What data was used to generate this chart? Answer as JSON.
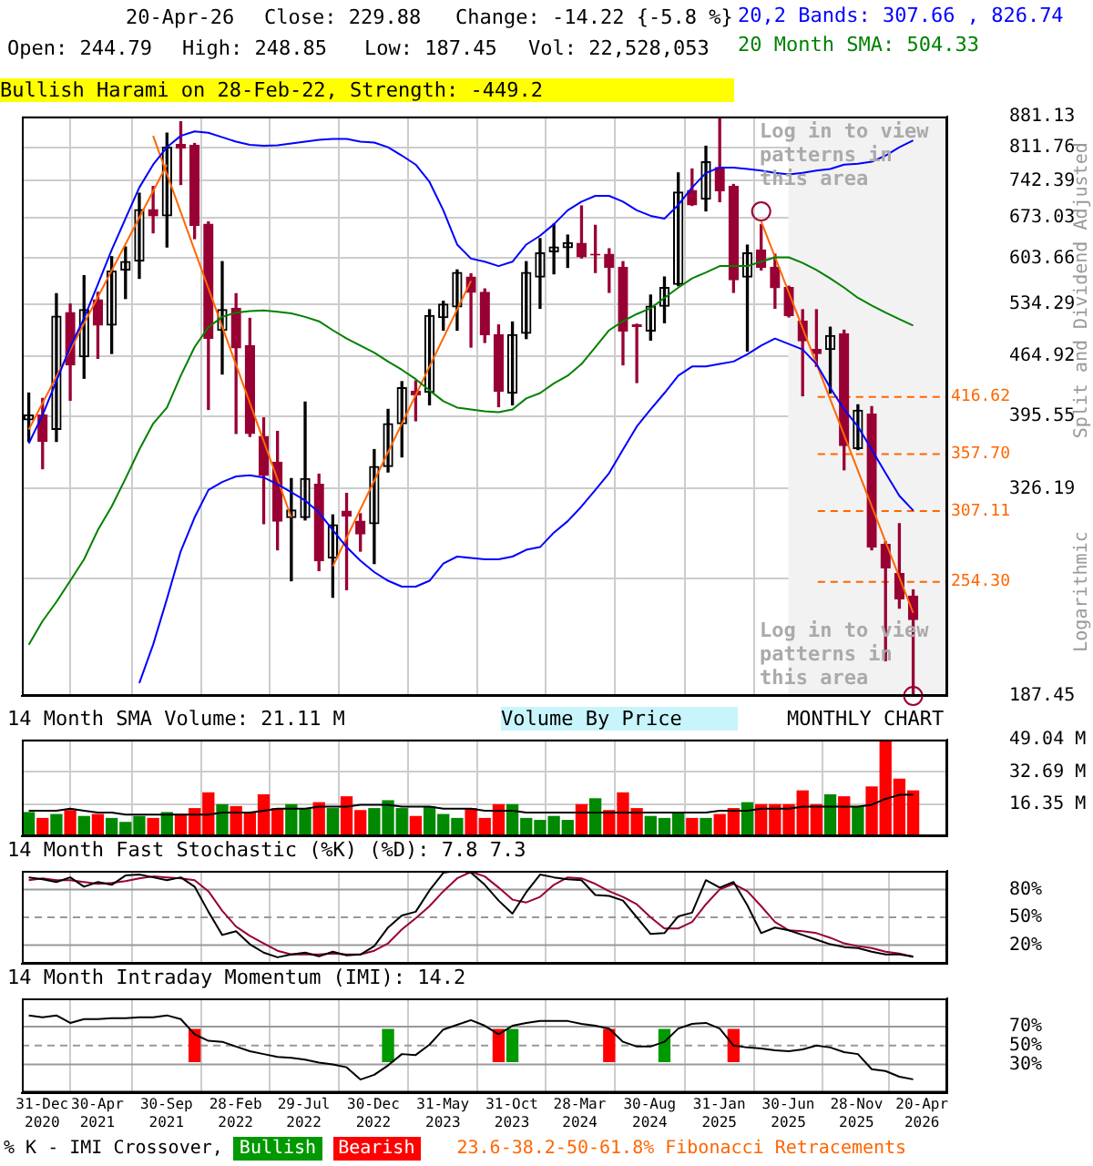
{
  "chart_data": [
    {
      "type": "candlestick",
      "title": "20-Apr-26",
      "ylabel": "Split and Dividend Adjusted",
      "x": [
        "2020-12",
        "2021-01",
        "2021-02",
        "2021-03",
        "2021-04",
        "2021-05",
        "2021-06",
        "2021-07",
        "2021-08",
        "2021-09",
        "2021-10",
        "2021-11",
        "2021-12",
        "2022-01",
        "2022-02",
        "2022-03",
        "2022-04",
        "2022-05",
        "2022-06",
        "2022-07",
        "2022-08",
        "2022-09",
        "2022-10",
        "2022-11",
        "2022-12",
        "2023-01",
        "2023-02",
        "2023-03",
        "2023-04",
        "2023-05",
        "2023-06",
        "2023-07",
        "2023-08",
        "2023-09",
        "2023-10",
        "2023-11",
        "2023-12",
        "2024-01",
        "2024-02",
        "2024-03",
        "2024-04",
        "2024-05",
        "2024-06",
        "2024-07",
        "2024-08",
        "2024-09",
        "2024-10",
        "2024-11",
        "2024-12",
        "2025-01",
        "2025-02",
        "2025-03",
        "2025-04",
        "2025-05",
        "2025-06",
        "2025-07",
        "2025-08",
        "2025-09",
        "2025-10",
        "2025-11",
        "2025-12",
        "2026-01",
        "2026-02",
        "2026-03",
        "2026-04"
      ],
      "ohlc": [
        [
          392,
          421,
          370,
          397
        ],
        [
          397,
          415,
          344,
          370
        ],
        [
          382,
          549,
          370,
          517
        ],
        [
          522,
          534,
          413,
          454
        ],
        [
          464,
          576,
          438,
          526
        ],
        [
          540,
          551,
          462,
          505
        ],
        [
          505,
          606,
          468,
          583
        ],
        [
          585,
          622,
          542,
          598
        ],
        [
          599,
          718,
          572,
          687
        ],
        [
          687,
          731,
          646,
          676
        ],
        [
          676,
          843,
          622,
          812
        ],
        [
          818,
          869,
          735,
          810
        ],
        [
          816,
          820,
          636,
          659
        ],
        [
          661,
          665,
          403,
          487
        ],
        [
          498,
          598,
          443,
          526
        ],
        [
          528,
          549,
          378,
          475
        ],
        [
          478,
          514,
          375,
          378
        ],
        [
          375,
          394,
          297,
          338
        ],
        [
          350,
          380,
          277,
          299
        ],
        [
          302,
          335,
          255,
          308
        ],
        [
          302,
          411,
          300,
          335
        ],
        [
          330,
          339,
          262,
          269
        ],
        [
          271,
          304,
          244,
          296
        ],
        [
          307,
          322,
          249,
          303
        ],
        [
          299,
          305,
          276,
          289
        ],
        [
          297,
          362,
          267,
          346
        ],
        [
          346,
          403,
          341,
          388
        ],
        [
          388,
          434,
          355,
          427
        ],
        [
          423,
          435,
          391,
          419
        ],
        [
          422,
          526,
          408,
          518
        ],
        [
          515,
          538,
          498,
          534
        ],
        [
          530,
          585,
          498,
          581
        ],
        [
          574,
          579,
          476,
          551
        ],
        [
          551,
          556,
          482,
          492
        ],
        [
          492,
          505,
          406,
          423
        ],
        [
          421,
          509,
          408,
          492
        ],
        [
          494,
          598,
          487,
          581
        ],
        [
          574,
          636,
          528,
          612
        ],
        [
          614,
          661,
          579,
          622
        ],
        [
          621,
          642,
          589,
          629
        ],
        [
          628,
          694,
          604,
          606
        ],
        [
          610,
          659,
          581,
          609
        ],
        [
          610,
          619,
          551,
          589
        ],
        [
          589,
          598,
          454,
          497
        ],
        [
          505,
          506,
          433,
          503
        ],
        [
          497,
          547,
          485,
          531
        ],
        [
          531,
          574,
          508,
          558
        ],
        [
          563,
          758,
          561,
          720
        ],
        [
          723,
          766,
          695,
          696
        ],
        [
          707,
          814,
          685,
          781
        ],
        [
          769,
          881,
          702,
          723
        ],
        [
          731,
          735,
          551,
          570
        ],
        [
          574,
          625,
          471,
          612
        ],
        [
          617,
          660,
          585,
          589
        ],
        [
          589,
          610,
          528,
          558
        ],
        [
          558,
          560,
          516,
          518
        ],
        [
          510,
          526,
          418,
          484
        ],
        [
          473,
          526,
          452,
          468
        ],
        [
          473,
          502,
          421,
          491
        ],
        [
          493,
          498,
          343,
          366
        ],
        [
          363,
          408,
          362,
          402
        ],
        [
          398,
          406,
          277,
          279
        ],
        [
          281,
          283,
          206,
          264
        ],
        [
          260,
          297,
          237,
          243
        ],
        [
          244.79,
          248.85,
          187.45,
          229.88
        ]
      ],
      "colors": [
        "#000000",
        "#990033",
        "#000000",
        "#990033",
        "#000000",
        "#990033",
        "#000000",
        "#000000",
        "#000000",
        "#990033",
        "#000000",
        "#990033",
        "#990033",
        "#990033",
        "#000000",
        "#990033",
        "#990033",
        "#990033",
        "#990033",
        "#000000",
        "#000000",
        "#990033",
        "#000000",
        "#990033",
        "#990033",
        "#000000",
        "#000000",
        "#000000",
        "#990033",
        "#000000",
        "#000000",
        "#000000",
        "#990033",
        "#990033",
        "#990033",
        "#000000",
        "#000000",
        "#000000",
        "#000000",
        "#000000",
        "#990033",
        "#990033",
        "#990033",
        "#990033",
        "#990033",
        "#000000",
        "#000000",
        "#000000",
        "#990033",
        "#000000",
        "#990033",
        "#990033",
        "#000000",
        "#990033",
        "#990033",
        "#990033",
        "#990033",
        "#990033",
        "#000000",
        "#990033",
        "#000000",
        "#990033",
        "#990033",
        "#990033",
        "#990033"
      ],
      "series": [
        {
          "type": "line",
          "color": "#0000ff",
          "values": [
            368,
            397,
            435,
            476,
            514,
            563,
            617,
            671,
            729,
            775,
            812,
            837,
            847,
            844,
            834,
            824,
            817,
            815,
            816,
            820,
            824,
            828,
            830,
            830,
            824,
            822,
            812,
            794,
            775,
            740,
            686,
            626,
            603,
            598,
            591,
            598,
            626,
            641,
            661,
            686,
            702,
            713,
            713,
            702,
            686,
            676,
            671,
            696,
            729,
            758,
            769,
            769,
            766,
            763,
            758,
            755,
            758,
            763,
            766,
            775,
            777,
            781,
            794,
            812,
            826.74
          ]
        },
        {
          "type": "line",
          "color": "#008000",
          "values": [
            215,
            229,
            241,
            255,
            270,
            292,
            311,
            335,
            362,
            388,
            405,
            441,
            476,
            502,
            516,
            522,
            524,
            525,
            523,
            521,
            516,
            510,
            498,
            487,
            478,
            469,
            458,
            448,
            437,
            424,
            412,
            405,
            403,
            401,
            400,
            403,
            415,
            421,
            432,
            441,
            455,
            476,
            498,
            510,
            520,
            528,
            543,
            558,
            572,
            581,
            591,
            591,
            591,
            598,
            605,
            605,
            596,
            585,
            572,
            558,
            543,
            532,
            522,
            513,
            504.33
          ]
        },
        {
          "type": "line",
          "color": "#0000ff",
          "values": [
            null,
            null,
            null,
            null,
            null,
            null,
            null,
            null,
            194,
            215,
            243,
            276,
            302,
            325,
            332,
            337,
            338,
            336,
            330,
            323,
            316,
            306,
            292,
            279,
            269,
            261,
            255,
            251,
            251,
            255,
            267,
            272,
            271,
            270,
            270,
            272,
            277,
            279,
            290,
            299,
            311,
            325,
            340,
            362,
            385,
            403,
            421,
            441,
            452,
            452,
            455,
            458,
            467,
            478,
            487,
            480,
            473,
            455,
            427,
            403,
            385,
            362,
            340,
            320,
            307.66
          ]
        },
        {
          "type": "line",
          "color": "#ff6600",
          "x": [
            "2020-12",
            "2021-10"
          ],
          "values": [
            382,
            775
          ]
        },
        {
          "type": "line",
          "color": "#ff6600",
          "x": [
            "2021-09",
            "2022-07"
          ],
          "values": [
            837,
            302
          ]
        },
        {
          "type": "line",
          "color": "#ff6600",
          "x": [
            "2022-10",
            "2023-08"
          ],
          "values": [
            265,
            568
          ]
        },
        {
          "type": "line",
          "color": "#ff6600",
          "x": [
            "2025-05",
            "2026-04"
          ],
          "values": [
            666,
            234
          ]
        },
        {
          "type": "scatter",
          "color": "#990033",
          "marker": "circle",
          "x": [
            "2025-05",
            "2026-04"
          ],
          "values": [
            684,
            187.45
          ]
        }
      ],
      "log": true,
      "ylim": [
        187.45,
        881.13
      ],
      "yticks": [
        187.45,
        {
          "value": 256.82,
          "label": null
        },
        326.19,
        395.55,
        464.92,
        534.29,
        603.66,
        673.03,
        742.39,
        811.76,
        881.13
      ],
      "xlim": [
        "2020-11-16",
        "2026-06-15"
      ],
      "xticks": [
        {
          "value": "2020-12-31",
          "label": null
        },
        {
          "value": "2021-04-30",
          "label": null
        },
        {
          "value": "2021-09-30",
          "label": null
        },
        {
          "value": "2022-02-28",
          "label": null
        },
        {
          "value": "2022-07-29",
          "label": null
        },
        {
          "value": "2022-12-30",
          "label": null
        },
        {
          "value": "2023-05-31",
          "label": null
        },
        {
          "value": "2023-10-31",
          "label": null
        },
        {
          "value": "2024-03-28",
          "label": null
        },
        {
          "value": "2024-08-30",
          "label": null
        },
        {
          "value": "2025-01-31",
          "label": null
        },
        {
          "value": "2025-06-30",
          "label": null
        },
        {
          "value": "2025-11-28",
          "label": null
        },
        {
          "value": "2026-04-20",
          "label": null
        }
      ],
      "grid": true,
      "tick_labels": "y",
      "bands": [
        {
          "axis": "x",
          "from": "2025-06-30",
          "to": "2026-06-15",
          "color": "#f2f2f2"
        }
      ],
      "ref_lines": [
        {
          "axis": "y",
          "value": 416.62,
          "label": "416.62",
          "color": "#ff6600",
          "line_style": "dashed"
        },
        {
          "axis": "y",
          "value": 357.7,
          "label": "357.70",
          "color": "#ff6600",
          "line_style": "dashed"
        },
        {
          "axis": "y",
          "value": 307.11,
          "label": "307.11",
          "color": "#ff6600",
          "line_style": "dashed"
        },
        {
          "axis": "y",
          "value": 254.3,
          "label": "254.30",
          "color": "#ff6600",
          "line_style": "dashed"
        }
      ],
      "annotations": [
        "Close: 229.88",
        "Change: -14.22 {-5.8 %}",
        "Open: 244.79",
        "High: 248.85",
        "Low: 187.45",
        "Vol: 22,528,053",
        "20,2 Bands: 307.66 , 826.74",
        "20 Month SMA: 504.33",
        "Bullish Harami on 28-Feb-22, Strength: -449.2",
        "Log in to view patterns in this area",
        "Log in to view patterns in this area",
        "Logarithmic"
      ]
    },
    {
      "type": "bar",
      "title": "14 Month SMA Volume: 21.11 M",
      "x": [
        "2020-12",
        "2021-01",
        "2021-02",
        "2021-03",
        "2021-04",
        "2021-05",
        "2021-06",
        "2021-07",
        "2021-08",
        "2021-09",
        "2021-10",
        "2021-11",
        "2021-12",
        "2022-01",
        "2022-02",
        "2022-03",
        "2022-04",
        "2022-05",
        "2022-06",
        "2022-07",
        "2022-08",
        "2022-09",
        "2022-10",
        "2022-11",
        "2022-12",
        "2023-01",
        "2023-02",
        "2023-03",
        "2023-04",
        "2023-05",
        "2023-06",
        "2023-07",
        "2023-08",
        "2023-09",
        "2023-10",
        "2023-11",
        "2023-12",
        "2024-01",
        "2024-02",
        "2024-03",
        "2024-04",
        "2024-05",
        "2024-06",
        "2024-07",
        "2024-08",
        "2024-09",
        "2024-10",
        "2024-11",
        "2024-12",
        "2025-01",
        "2025-02",
        "2025-03",
        "2025-04",
        "2025-05",
        "2025-06",
        "2025-07",
        "2025-08",
        "2025-09",
        "2025-10",
        "2025-11",
        "2025-12",
        "2026-01",
        "2026-02",
        "2026-03",
        "2026-04"
      ],
      "series": [
        {
          "type": "bar",
          "values": [
            12,
            9,
            11,
            13,
            10,
            11,
            9,
            7,
            10,
            9,
            12,
            11,
            14,
            22,
            16,
            15,
            12,
            21,
            14,
            16,
            14,
            17,
            14,
            20,
            13,
            14,
            18,
            14,
            10,
            15,
            11,
            9,
            14,
            9,
            16,
            16,
            9,
            8,
            10,
            8,
            16,
            19,
            13,
            22,
            14,
            10,
            9,
            12,
            9,
            9,
            11,
            14,
            17,
            16,
            16,
            16,
            23,
            16,
            21,
            20,
            15,
            25,
            49,
            29,
            23
          ],
          "colors": [
            "#008800",
            "#ff0000",
            "#008800",
            "#ff0000",
            "#008800",
            "#ff0000",
            "#008800",
            "#008800",
            "#008800",
            "#ff0000",
            "#008800",
            "#ff0000",
            "#ff0000",
            "#ff0000",
            "#008800",
            "#ff0000",
            "#ff0000",
            "#ff0000",
            "#ff0000",
            "#008800",
            "#008800",
            "#ff0000",
            "#008800",
            "#ff0000",
            "#ff0000",
            "#008800",
            "#008800",
            "#008800",
            "#ff0000",
            "#008800",
            "#008800",
            "#008800",
            "#ff0000",
            "#ff0000",
            "#ff0000",
            "#008800",
            "#008800",
            "#008800",
            "#008800",
            "#008800",
            "#ff0000",
            "#008800",
            "#ff0000",
            "#ff0000",
            "#ff0000",
            "#008800",
            "#008800",
            "#008800",
            "#ff0000",
            "#008800",
            "#ff0000",
            "#ff0000",
            "#008800",
            "#ff0000",
            "#ff0000",
            "#ff0000",
            "#ff0000",
            "#ff0000",
            "#008800",
            "#ff0000",
            "#008800",
            "#ff0000",
            "#ff0000",
            "#ff0000",
            "#ff0000"
          ]
        },
        {
          "type": "line",
          "color": "#000000",
          "values": [
            13,
            13,
            13,
            14,
            13,
            12,
            12,
            11,
            11,
            11,
            11,
            11,
            11,
            11,
            12,
            12,
            12,
            13,
            14,
            14,
            14,
            15,
            15,
            15,
            16,
            16,
            16,
            15,
            15,
            15,
            14,
            14,
            14,
            13,
            13,
            13,
            12,
            12,
            12,
            12,
            12,
            12,
            12,
            12,
            12,
            12,
            12,
            12,
            12,
            12,
            13,
            13,
            13,
            14,
            14,
            14,
            15,
            15,
            15,
            15,
            15,
            16,
            19,
            21,
            21.11
          ]
        }
      ],
      "ylim": [
        0,
        49.04
      ],
      "yticks": [
        {
          "value": 16.35,
          "label": "16.35 M"
        },
        {
          "value": 32.69,
          "label": "32.69 M"
        },
        {
          "value": 49.04,
          "label": "49.04 M"
        }
      ],
      "xlim": [
        "2020-11-16",
        "2026-06-15"
      ],
      "xticks": [
        {
          "value": "2020-12-31",
          "label": null
        },
        {
          "value": "2021-04-30",
          "label": null
        },
        {
          "value": "2021-09-30",
          "label": null
        },
        {
          "value": "2022-02-28",
          "label": null
        },
        {
          "value": "2022-07-29",
          "label": null
        },
        {
          "value": "2022-12-30",
          "label": null
        },
        {
          "value": "2023-05-31",
          "label": null
        },
        {
          "value": "2023-10-31",
          "label": null
        },
        {
          "value": "2024-03-28",
          "label": null
        },
        {
          "value": "2024-08-30",
          "label": null
        },
        {
          "value": "2025-01-31",
          "label": null
        },
        {
          "value": "2025-06-30",
          "label": null
        },
        {
          "value": "2025-11-28",
          "label": null
        },
        {
          "value": "2026-04-20",
          "label": null
        }
      ],
      "grid": true,
      "tick_labels": "y",
      "annotations": [
        "Volume By Price",
        "MONTHLY CHART"
      ]
    },
    {
      "type": "line",
      "title": "14 Month Fast Stochastic (%K) (%D): 7.8  7.3",
      "x": [
        "2020-12",
        "2021-01",
        "2021-02",
        "2021-03",
        "2021-04",
        "2021-05",
        "2021-06",
        "2021-07",
        "2021-08",
        "2021-09",
        "2021-10",
        "2021-11",
        "2021-12",
        "2022-01",
        "2022-02",
        "2022-03",
        "2022-04",
        "2022-05",
        "2022-06",
        "2022-07",
        "2022-08",
        "2022-09",
        "2022-10",
        "2022-11",
        "2022-12",
        "2023-01",
        "2023-02",
        "2023-03",
        "2023-04",
        "2023-05",
        "2023-06",
        "2023-07",
        "2023-08",
        "2023-09",
        "2023-10",
        "2023-11",
        "2023-12",
        "2024-01",
        "2024-02",
        "2024-03",
        "2024-04",
        "2024-05",
        "2024-06",
        "2024-07",
        "2024-08",
        "2024-09",
        "2024-10",
        "2024-11",
        "2024-12",
        "2025-01",
        "2025-02",
        "2025-03",
        "2025-04",
        "2025-05",
        "2025-06",
        "2025-07",
        "2025-08",
        "2025-09",
        "2025-10",
        "2025-11",
        "2025-12",
        "2026-01",
        "2026-02",
        "2026-03",
        "2026-04"
      ],
      "series": [
        {
          "color": "#000000",
          "values": [
            93,
            91,
            88,
            93,
            83,
            88,
            85,
            95,
            96,
            93,
            90,
            93,
            83,
            56,
            31,
            35,
            21,
            12,
            7,
            10,
            12,
            8,
            13,
            9,
            10,
            19,
            39,
            52,
            56,
            79,
            98,
            100,
            98,
            85,
            68,
            54,
            77,
            96,
            93,
            91,
            90,
            74,
            73,
            68,
            50,
            32,
            33,
            51,
            55,
            90,
            82,
            88,
            63,
            33,
            39,
            36,
            31,
            26,
            21,
            18,
            17,
            13,
            10,
            10,
            7.8
          ]
        },
        {
          "color": "#990033",
          "values": [
            90,
            92,
            90,
            90,
            88,
            86,
            87,
            89,
            92,
            94,
            93,
            92,
            90,
            78,
            57,
            40,
            30,
            22,
            14,
            10,
            10,
            10,
            11,
            10,
            10,
            14,
            22,
            37,
            49,
            62,
            78,
            92,
            99,
            94,
            82,
            69,
            66,
            72,
            85,
            93,
            92,
            86,
            78,
            72,
            64,
            50,
            38,
            38,
            45,
            64,
            80,
            86,
            78,
            62,
            45,
            36,
            35,
            33,
            28,
            22,
            19,
            17,
            13,
            11,
            7.3
          ]
        }
      ],
      "ylim": [
        0,
        100
      ],
      "yticks": [
        {
          "value": 20,
          "label": "20%"
        },
        {
          "value": 50,
          "label": "50%"
        },
        {
          "value": 80,
          "label": "80%"
        }
      ],
      "xlim": [
        "2020-11-16",
        "2026-06-15"
      ],
      "xticks": [
        {
          "value": "2020-12-31",
          "label": null
        },
        {
          "value": "2021-04-30",
          "label": null
        },
        {
          "value": "2021-09-30",
          "label": null
        },
        {
          "value": "2022-02-28",
          "label": null
        },
        {
          "value": "2022-07-29",
          "label": null
        },
        {
          "value": "2022-12-30",
          "label": null
        },
        {
          "value": "2023-05-31",
          "label": null
        },
        {
          "value": "2023-10-31",
          "label": null
        },
        {
          "value": "2024-03-28",
          "label": null
        },
        {
          "value": "2024-08-30",
          "label": null
        },
        {
          "value": "2025-01-31",
          "label": null
        },
        {
          "value": "2025-06-30",
          "label": null
        },
        {
          "value": "2025-11-28",
          "label": null
        },
        {
          "value": "2026-04-20",
          "label": null
        }
      ],
      "grid": "x",
      "tick_labels": "y",
      "ref_lines": [
        {
          "axis": "y",
          "value": 20,
          "color": "#999999"
        },
        {
          "axis": "y",
          "value": 50,
          "color": "#999999",
          "line_style": "dashed"
        },
        {
          "axis": "y",
          "value": 80,
          "color": "#999999"
        }
      ]
    },
    {
      "type": "line",
      "title": "14 Month Intraday Momentum (IMI): 14.2",
      "x": [
        "2020-12",
        "2021-01",
        "2021-02",
        "2021-03",
        "2021-04",
        "2021-05",
        "2021-06",
        "2021-07",
        "2021-08",
        "2021-09",
        "2021-10",
        "2021-11",
        "2021-12",
        "2022-01",
        "2022-02",
        "2022-03",
        "2022-04",
        "2022-05",
        "2022-06",
        "2022-07",
        "2022-08",
        "2022-09",
        "2022-10",
        "2022-11",
        "2022-12",
        "2023-01",
        "2023-02",
        "2023-03",
        "2023-04",
        "2023-05",
        "2023-06",
        "2023-07",
        "2023-08",
        "2023-09",
        "2023-10",
        "2023-11",
        "2023-12",
        "2024-01",
        "2024-02",
        "2024-03",
        "2024-04",
        "2024-05",
        "2024-06",
        "2024-07",
        "2024-08",
        "2024-09",
        "2024-10",
        "2024-11",
        "2024-12",
        "2025-01",
        "2025-02",
        "2025-03",
        "2025-04",
        "2025-05",
        "2025-06",
        "2025-07",
        "2025-08",
        "2025-09",
        "2025-10",
        "2025-11",
        "2025-12",
        "2026-01",
        "2026-02",
        "2026-03",
        "2026-04"
      ],
      "series": [
        {
          "type": "line",
          "color": "#000000",
          "values": [
            82,
            80,
            82,
            74,
            78,
            78,
            79,
            79,
            80,
            80,
            82,
            78,
            62,
            55,
            54,
            49,
            44,
            41,
            38,
            37,
            35,
            32,
            30,
            27,
            14,
            19,
            29,
            41,
            40,
            51,
            67,
            72,
            77,
            71,
            62,
            71,
            74,
            76,
            76,
            76,
            73,
            71,
            68,
            54,
            49,
            49,
            54,
            68,
            73,
            74,
            68,
            50,
            48,
            47,
            45,
            44,
            46,
            50,
            48,
            43,
            41,
            25,
            23,
            17,
            14.2
          ]
        },
        {
          "type": "bar",
          "name": "Bullish",
          "color": "#009900",
          "x": [
            "2023-02",
            "2023-11",
            "2024-10"
          ],
          "base": [
            33,
            33,
            33
          ],
          "values": [
            34,
            34,
            34
          ]
        },
        {
          "type": "bar",
          "name": "Bearish",
          "color": "#ff0000",
          "x": [
            "2021-12",
            "2023-10",
            "2024-06",
            "2025-03"
          ],
          "base": [
            33,
            33,
            33,
            33
          ],
          "values": [
            34,
            34,
            34,
            34
          ]
        }
      ],
      "ylim": [
        0,
        100
      ],
      "yticks": [
        {
          "value": 30,
          "label": "30%"
        },
        {
          "value": 50,
          "label": "50%"
        },
        {
          "value": 70,
          "label": "70%"
        }
      ],
      "xlim": [
        "2020-11-16",
        "2026-06-15"
      ],
      "xticks": [
        {
          "value": "2020-12-31",
          "label": "31-Dec\n2020"
        },
        {
          "value": "2021-04-30",
          "label": "30-Apr\n2021"
        },
        {
          "value": "2021-09-30",
          "label": "30-Sep\n2021"
        },
        {
          "value": "2022-02-28",
          "label": "28-Feb\n2022"
        },
        {
          "value": "2022-07-29",
          "label": "29-Jul\n2022"
        },
        {
          "value": "2022-12-30",
          "label": "30-Dec\n2022"
        },
        {
          "value": "2023-05-31",
          "label": "31-May\n2023"
        },
        {
          "value": "2023-10-31",
          "label": "31-Oct\n2023"
        },
        {
          "value": "2024-03-28",
          "label": "28-Mar\n2024"
        },
        {
          "value": "2024-08-30",
          "label": "30-Aug\n2024"
        },
        {
          "value": "2025-01-31",
          "label": "31-Jan\n2025"
        },
        {
          "value": "2025-06-30",
          "label": "30-Jun\n2025"
        },
        {
          "value": "2025-11-28",
          "label": "28-Nov\n2025"
        },
        {
          "value": "2026-04-20",
          "label": "20-Apr\n2026"
        }
      ],
      "grid": "x",
      "ref_lines": [
        {
          "axis": "y",
          "value": 30,
          "color": "#999999"
        },
        {
          "axis": "y",
          "value": 50,
          "color": "#999999",
          "line_style": "dashed"
        },
        {
          "axis": "y",
          "value": 70,
          "color": "#999999"
        }
      ],
      "legend": "bottom",
      "legend_title": "% K - IMI Crossover,",
      "annotations": [
        "23.6-38.2-50-61.8% Fibonacci Retracements"
      ]
    }
  ]
}
